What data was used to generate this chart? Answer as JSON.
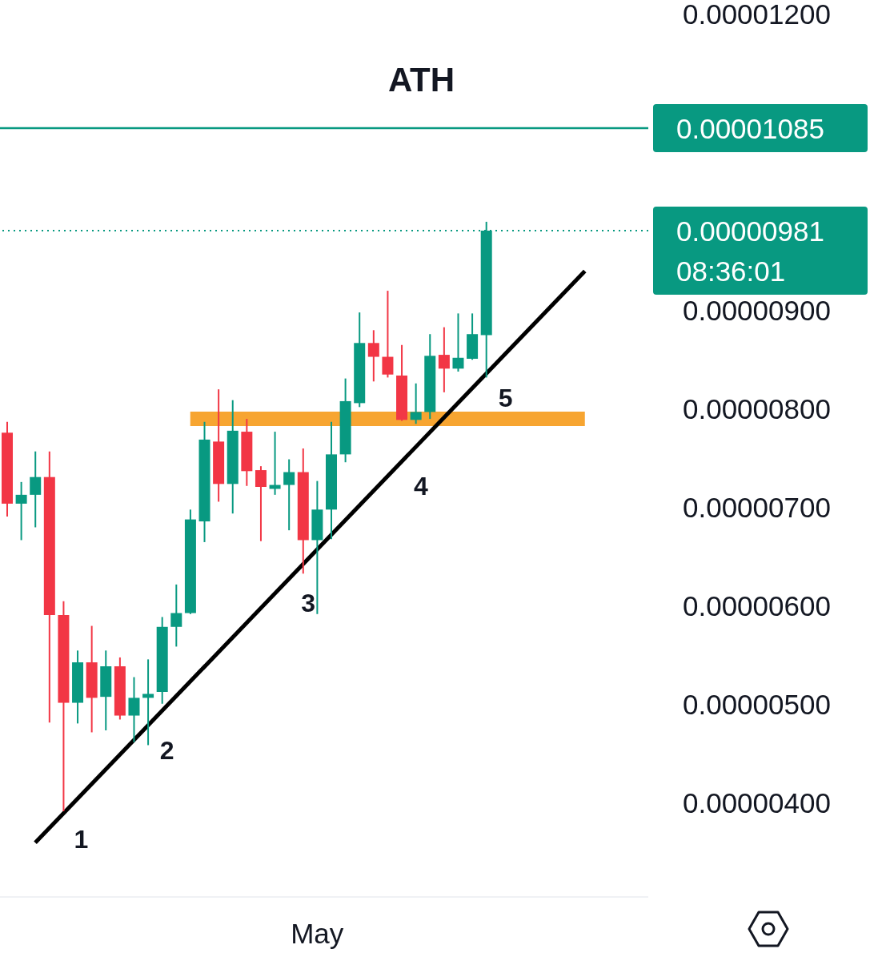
{
  "chart_data": {
    "type": "candlestick",
    "title": "ATH",
    "categories": [
      null,
      null,
      null,
      null,
      null,
      null,
      null,
      null,
      null,
      null,
      null,
      null,
      null,
      null,
      null,
      null,
      null,
      null,
      null,
      null,
      null,
      null,
      "May",
      null,
      null,
      null,
      null,
      null,
      null,
      null,
      null,
      null,
      null,
      null,
      null,
      null,
      null,
      null,
      null,
      null,
      null,
      null,
      null,
      null,
      null,
      null
    ],
    "ohlc": [
      [
        7.76e-06,
        7.87e-06,
        6.91e-06,
        7.04e-06
      ],
      [
        7.04e-06,
        7.26e-06,
        6.67e-06,
        7.13e-06
      ],
      [
        7.13e-06,
        7.57e-06,
        6.8e-06,
        7.31e-06
      ],
      [
        7.31e-06,
        7.57e-06,
        4.82e-06,
        5.91e-06
      ],
      [
        5.91e-06,
        6.05e-06,
        3.92e-06,
        5.02e-06
      ],
      [
        5.02e-06,
        5.55e-06,
        4.81e-06,
        5.43e-06
      ],
      [
        5.43e-06,
        5.8e-06,
        4.72e-06,
        5.07e-06
      ],
      [
        5.08e-06,
        5.55e-06,
        4.74e-06,
        5.39e-06
      ],
      [
        5.39e-06,
        5.48e-06,
        4.85e-06,
        4.89e-06
      ],
      [
        4.89e-06,
        5.28e-06,
        4.62e-06,
        5.07e-06
      ],
      [
        5.07e-06,
        5.46e-06,
        4.59e-06,
        5.11e-06
      ],
      [
        5.13e-06,
        5.89e-06,
        5.01e-06,
        5.79e-06
      ],
      [
        5.79e-06,
        6.22e-06,
        5.59e-06,
        5.93e-06
      ],
      [
        5.93e-06,
        6.98e-06,
        5.92e-06,
        6.88e-06
      ],
      [
        6.86e-06,
        7.87e-06,
        6.65e-06,
        7.69e-06
      ],
      [
        7.67e-06,
        8.2e-06,
        7.06e-06,
        7.24e-06
      ],
      [
        7.24e-06,
        8.09e-06,
        6.94e-06,
        7.78e-06
      ],
      [
        7.77e-06,
        7.9e-06,
        7.22e-06,
        7.37e-06
      ],
      [
        7.38e-06,
        7.42e-06,
        6.66e-06,
        7.21e-06
      ],
      [
        7.19e-06,
        7.77e-06,
        7.13e-06,
        7.23e-06
      ],
      [
        7.23e-06,
        7.49e-06,
        6.77e-06,
        7.36e-06
      ],
      [
        7.36e-06,
        7.6e-06,
        6.33e-06,
        6.67e-06
      ],
      [
        6.67e-06,
        7.27e-06,
        5.92e-06,
        6.98e-06
      ],
      [
        6.98e-06,
        7.87e-06,
        6.68e-06,
        7.54e-06
      ],
      [
        7.54e-06,
        8.31e-06,
        7.46e-06,
        8.08e-06
      ],
      [
        8.06e-06,
        8.98e-06,
        8.02e-06,
        8.67e-06
      ],
      [
        8.67e-06,
        8.8e-06,
        8.28e-06,
        8.53e-06
      ],
      [
        8.53e-06,
        9.2e-06,
        8.32e-06,
        8.35e-06
      ],
      [
        8.34e-06,
        8.65e-06,
        7.88e-06,
        7.89e-06
      ],
      [
        7.89e-06,
        8.26e-06,
        7.85e-06,
        7.97e-06
      ],
      [
        7.97e-06,
        8.76e-06,
        7.9e-06,
        8.54e-06
      ],
      [
        8.55e-06,
        8.83e-06,
        8.17e-06,
        8.41e-06
      ],
      [
        8.41e-06,
        8.97e-06,
        8.38e-06,
        8.52e-06
      ],
      [
        8.51e-06,
        8.97e-06,
        8.5e-06,
        8.76e-06
      ],
      [
        8.75e-06,
        9.9e-06,
        8.32e-06,
        9.81e-06
      ],
      null,
      null,
      null,
      null,
      null,
      null,
      null,
      null,
      null,
      null,
      null
    ],
    "colors": [
      "#f23645",
      "#089981",
      "#089981",
      "#f23645",
      "#f23645",
      "#089981",
      "#f23645",
      "#089981",
      "#f23645",
      "#089981",
      "#089981",
      "#089981",
      "#089981",
      "#089981",
      "#089981",
      "#f23645",
      "#089981",
      "#f23645",
      "#f23645",
      "#089981",
      "#089981",
      "#f23645",
      "#089981",
      "#089981",
      "#089981",
      "#089981",
      "#f23645",
      "#f23645",
      "#f23645",
      "#089981",
      "#089981",
      "#f23645",
      "#089981",
      "#089981",
      "#089981",
      null,
      null,
      null,
      null,
      null,
      null,
      null,
      null,
      null,
      null,
      null
    ],
    "series": [
      {
        "type": "line",
        "color": "#f7a531",
        "values": [
          null,
          null,
          null,
          null,
          null,
          null,
          null,
          null,
          null,
          null,
          null,
          null,
          null,
          7.9e-06,
          null,
          null,
          null,
          null,
          null,
          null,
          null,
          null,
          null,
          null,
          null,
          null,
          null,
          null,
          null,
          null,
          null,
          null,
          null,
          null,
          null,
          null,
          null,
          null,
          null,
          null,
          null,
          7.9e-06,
          null,
          null,
          null,
          null
        ]
      },
      {
        "type": "line",
        "color": "#000000",
        "values": [
          null,
          null,
          3.6e-06,
          null,
          null,
          null,
          null,
          null,
          null,
          null,
          null,
          null,
          null,
          null,
          null,
          null,
          null,
          null,
          null,
          null,
          null,
          null,
          null,
          null,
          null,
          null,
          null,
          null,
          null,
          null,
          null,
          null,
          null,
          null,
          null,
          null,
          null,
          null,
          null,
          null,
          null,
          9.4e-06,
          null,
          null,
          null,
          null
        ]
      }
    ],
    "annotations": [
      "1",
      "2",
      "3",
      "4",
      "5",
      "08:36:01"
    ],
    "ylim": [
      3.05e-06,
      1.215e-05
    ],
    "yticks": [
      {
        "value": 4e-06,
        "label": "0.00000400"
      },
      {
        "value": 5e-06,
        "label": "0.00000500"
      },
      {
        "value": 6e-06,
        "label": "0.00000600"
      },
      {
        "value": 7e-06,
        "label": "0.00000700"
      },
      {
        "value": 8e-06,
        "label": "0.00000800"
      },
      {
        "value": 9e-06,
        "label": "0.00000900"
      },
      {
        "value": 1.2e-05,
        "label": "0.00001200"
      }
    ],
    "ref_lines": [
      {
        "axis": "y",
        "value": 1.085e-05,
        "label": "0.00001085",
        "color": "#089981",
        "line_style": "solid"
      },
      {
        "axis": "y",
        "value": 9.81e-06,
        "label": "0.00000981",
        "color": "#089981",
        "line_style": "dotted"
      }
    ]
  }
}
